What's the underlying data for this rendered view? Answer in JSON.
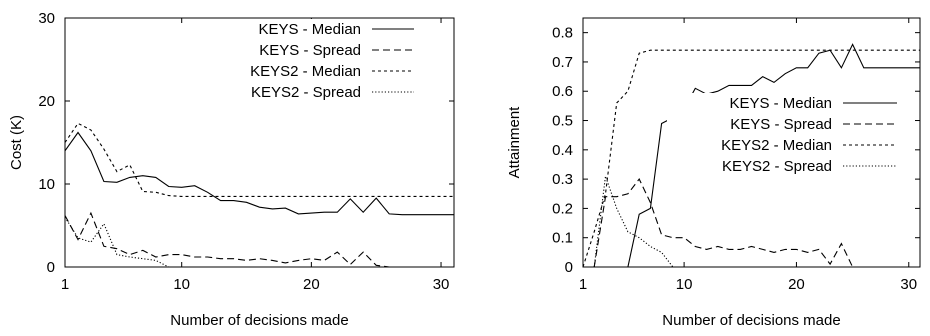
{
  "chart_data": [
    {
      "type": "line",
      "xlabel": "Number of decisions made",
      "ylabel": "Cost (K)",
      "xlim": [
        1,
        31
      ],
      "ylim": [
        0,
        30
      ],
      "xticks": [
        1,
        10,
        20,
        30
      ],
      "yticks": [
        0,
        10,
        20,
        30
      ],
      "grid": false,
      "legend_position": "top-right",
      "series": [
        {
          "name": "KEYS - Median",
          "style": "solid",
          "x": [
            1,
            2,
            3,
            4,
            5,
            6,
            7,
            8,
            9,
            10,
            11,
            12,
            13,
            14,
            15,
            16,
            17,
            18,
            19,
            20,
            21,
            22,
            23,
            24,
            25,
            26,
            27,
            28,
            29,
            30,
            31
          ],
          "y": [
            14,
            16.2,
            14,
            10.3,
            10.2,
            10.8,
            11,
            10.8,
            9.7,
            9.6,
            9.8,
            9,
            8,
            8,
            7.8,
            7.2,
            7,
            7.1,
            6.4,
            6.5,
            6.6,
            6.6,
            8.2,
            6.6,
            8.3,
            6.4,
            6.3,
            6.3,
            6.3,
            6.3,
            6.3
          ]
        },
        {
          "name": "KEYS - Spread",
          "style": "dashed",
          "x": [
            1,
            2,
            3,
            4,
            5,
            6,
            7,
            8,
            9,
            10,
            11,
            12,
            13,
            14,
            15,
            16,
            17,
            18,
            19,
            20,
            21,
            22,
            23,
            24,
            25,
            26
          ],
          "y": [
            6.2,
            3.3,
            6.5,
            2.5,
            2.2,
            1.5,
            2,
            1.2,
            1.5,
            1.5,
            1.2,
            1.2,
            1,
            1,
            0.8,
            1,
            0.8,
            0.5,
            0.8,
            1,
            0.8,
            1.8,
            0.3,
            1.8,
            0.2,
            0
          ]
        },
        {
          "name": "KEYS2 - Median",
          "style": "short-dashed",
          "x": [
            1,
            2,
            3,
            4,
            5,
            6,
            7,
            8,
            9,
            10,
            11,
            12,
            13,
            14,
            15,
            16,
            17,
            18,
            19,
            20,
            21,
            22,
            23,
            24,
            25,
            26,
            27,
            28,
            29,
            30,
            31
          ],
          "y": [
            15,
            17.3,
            16.5,
            14.2,
            11.5,
            12.3,
            9.1,
            9,
            8.6,
            8.5,
            8.5,
            8.5,
            8.5,
            8.5,
            8.5,
            8.5,
            8.5,
            8.5,
            8.5,
            8.5,
            8.5,
            8.5,
            8.5,
            8.5,
            8.5,
            8.5,
            8.5,
            8.5,
            8.5,
            8.5,
            8.5
          ]
        },
        {
          "name": "KEYS2 - Spread",
          "style": "dotted",
          "x": [
            1,
            2,
            3,
            4,
            5,
            6,
            7,
            8,
            9
          ],
          "y": [
            6,
            3.5,
            3,
            5.2,
            1.5,
            1.2,
            1,
            0.8,
            0
          ]
        }
      ]
    },
    {
      "type": "line",
      "xlabel": "Number of decisions made",
      "ylabel": "Attainment",
      "xlim": [
        1,
        31
      ],
      "ylim": [
        0,
        0.85
      ],
      "xticks": [
        1,
        10,
        20,
        30
      ],
      "yticks": [
        0,
        0.1,
        0.2,
        0.3,
        0.4,
        0.5,
        0.6,
        0.7,
        0.8
      ],
      "grid": false,
      "legend_position": "center-right",
      "series": [
        {
          "name": "KEYS - Median",
          "style": "solid",
          "x": [
            5,
            6,
            7,
            8,
            9,
            10,
            11,
            12,
            13,
            14,
            15,
            16,
            17,
            18,
            19,
            20,
            21,
            22,
            23,
            24,
            25,
            26,
            27,
            28,
            29,
            30,
            31
          ],
          "y": [
            0,
            0.18,
            0.2,
            0.49,
            0.51,
            0.54,
            0.61,
            0.59,
            0.6,
            0.62,
            0.62,
            0.62,
            0.65,
            0.63,
            0.66,
            0.68,
            0.68,
            0.73,
            0.74,
            0.68,
            0.76,
            0.68,
            0.68,
            0.68,
            0.68,
            0.68,
            0.68
          ]
        },
        {
          "name": "KEYS - Spread",
          "style": "dashed",
          "x": [
            2,
            3,
            4,
            5,
            6,
            7,
            8,
            9,
            10,
            11,
            12,
            13,
            14,
            15,
            16,
            17,
            18,
            19,
            20,
            21,
            22,
            23,
            24,
            25
          ],
          "y": [
            0,
            0.24,
            0.24,
            0.25,
            0.3,
            0.22,
            0.11,
            0.1,
            0.1,
            0.07,
            0.06,
            0.07,
            0.06,
            0.06,
            0.07,
            0.06,
            0.05,
            0.06,
            0.06,
            0.05,
            0.06,
            0.01,
            0.08,
            0
          ]
        },
        {
          "name": "KEYS2 - Median",
          "style": "short-dashed",
          "x": [
            1,
            2,
            3,
            4,
            5,
            6,
            7,
            8,
            9,
            10,
            11,
            12,
            13,
            14,
            15,
            16,
            17,
            18,
            19,
            20,
            21,
            22,
            23,
            24,
            25,
            26,
            27,
            28,
            29,
            30,
            31
          ],
          "y": [
            0,
            0.12,
            0.25,
            0.56,
            0.6,
            0.73,
            0.74,
            0.74,
            0.74,
            0.74,
            0.74,
            0.74,
            0.74,
            0.74,
            0.74,
            0.74,
            0.74,
            0.74,
            0.74,
            0.74,
            0.74,
            0.74,
            0.74,
            0.74,
            0.74,
            0.74,
            0.74,
            0.74,
            0.74,
            0.74,
            0.74
          ]
        },
        {
          "name": "KEYS2 - Spread",
          "style": "dotted",
          "x": [
            2,
            3,
            4,
            5,
            6,
            7,
            8,
            9
          ],
          "y": [
            0,
            0.31,
            0.2,
            0.12,
            0.1,
            0.07,
            0.05,
            0
          ]
        }
      ]
    }
  ]
}
